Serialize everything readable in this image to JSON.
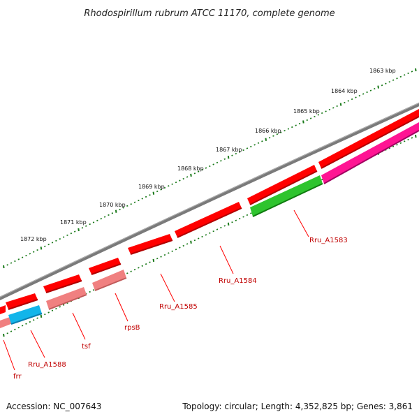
{
  "title": "Rhodospirillum rubrum ATCC 11170, complete genome",
  "footer": {
    "accession": "Accession: NC_007643",
    "summary": "Topology: circular; Length: 4,352,825 bp; Genes: 3,861"
  },
  "scale_labels": [
    "1863 kbp",
    "1864 kbp",
    "1865 kbp",
    "1866 kbp",
    "1867 kbp",
    "1868 kbp",
    "1869 kbp",
    "1870 kbp",
    "1871 kbp",
    "1872 kbp"
  ],
  "gene_labels": [
    "Rru_A1583",
    "Rru_A1584",
    "Rru_A1585",
    "rpsB",
    "tsf",
    "Rru_A1588",
    "frr"
  ],
  "colors": {
    "backbone": "#808080",
    "cds": "#ff0000",
    "rna": "#f08080",
    "pseudo": "#00bfff",
    "green": "#22b822",
    "magenta": "#ff1493",
    "ticks": "#1a7a1a",
    "label": "#c00000"
  }
}
